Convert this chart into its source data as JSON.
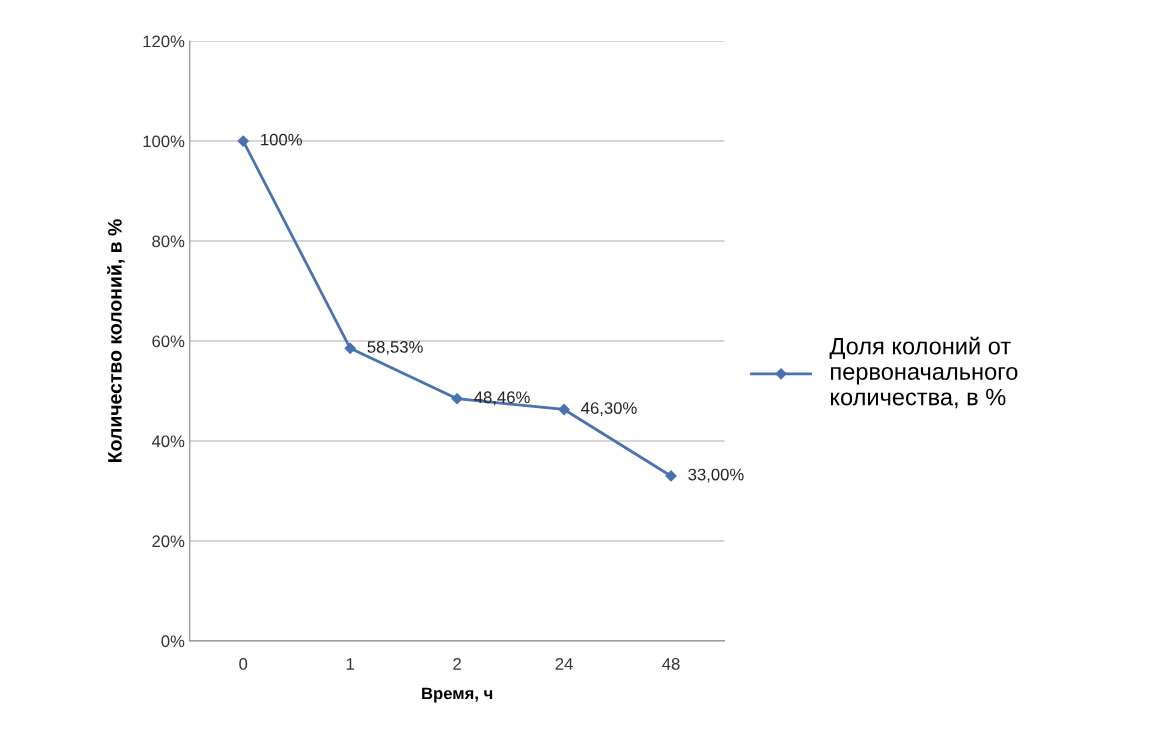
{
  "chart_data": {
    "type": "line",
    "xlabel": "Время, ч",
    "ylabel": "Количество колоний, в %",
    "categories": [
      "0",
      "1",
      "2",
      "24",
      "48"
    ],
    "series": [
      {
        "name": "Доля колоний от\nпервоначального\nколичества, в %",
        "color": "#4a72b0",
        "values": [
          100,
          58.53,
          48.46,
          46.3,
          33.0
        ],
        "value_labels": [
          "100%",
          "58,53%",
          "48,46%",
          "46,30%",
          "33,00%"
        ]
      }
    ],
    "ylim": [
      0,
      120
    ],
    "yticks": [
      {
        "value": 0,
        "label": "0%"
      },
      {
        "value": 20,
        "label": "20%"
      },
      {
        "value": 40,
        "label": "40%"
      },
      {
        "value": 60,
        "label": "60%"
      },
      {
        "value": 80,
        "label": "80%"
      },
      {
        "value": 100,
        "label": "100%"
      },
      {
        "value": 120,
        "label": "120%"
      }
    ],
    "grid": "y",
    "legend": "right",
    "marker": "diamond",
    "line_style": "solid"
  }
}
